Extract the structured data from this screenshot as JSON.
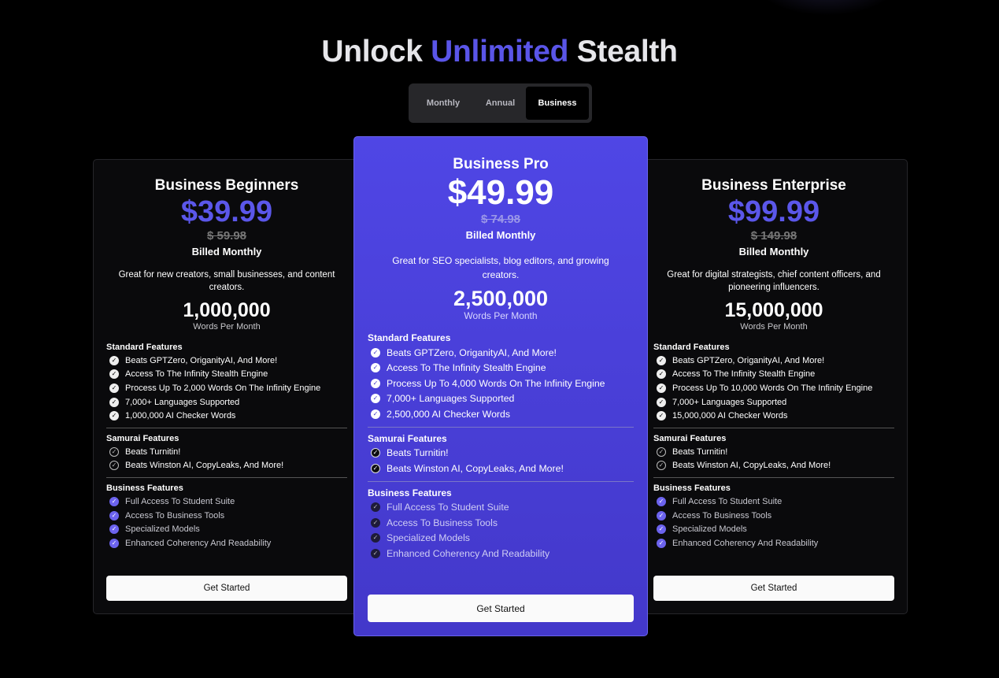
{
  "title": {
    "part1": "Unlock",
    "accent": "Unlimited",
    "part2": "Stealth"
  },
  "billing_toggle": {
    "options": [
      "Monthly",
      "Annual",
      "Business"
    ],
    "selected": "Business"
  },
  "colors": {
    "accent": "#5b57ea",
    "featured_card": "#4f46e5",
    "background": "#000000"
  },
  "plans": [
    {
      "name": "Business Beginners",
      "price": "$39.99",
      "old_price": "$ 59.98",
      "billing": "Billed Monthly",
      "description": "Great for new creators, small businesses, and content creators.",
      "words": "1,000,000",
      "words_label": "Words Per Month",
      "standard": {
        "title": "Standard Features",
        "items": [
          "Beats GPTZero, OriganityAI, And More!",
          "Access To The Infinity Stealth Engine",
          "Process Up To 2,000 Words On The Infinity Engine",
          "7,000+ Languages Supported",
          "1,000,000 AI Checker Words"
        ]
      },
      "samurai": {
        "title": "Samurai Features",
        "items": [
          "Beats Turnitin!",
          "Beats Winston AI, CopyLeaks, And More!"
        ]
      },
      "business": {
        "title": "Business Features",
        "items": [
          "Full Access To Student Suite",
          "Access To Business Tools",
          "Specialized Models",
          "Enhanced Coherency And Readability"
        ]
      },
      "cta": "Get Started"
    },
    {
      "name": "Business Pro",
      "price": "$49.99",
      "old_price": "$ 74.98",
      "billing": "Billed Monthly",
      "description": "Great for SEO specialists, blog editors, and growing creators.",
      "words": "2,500,000",
      "words_label": "Words Per Month",
      "standard": {
        "title": "Standard Features",
        "items": [
          "Beats GPTZero, OriganityAI, And More!",
          "Access To The Infinity Stealth Engine",
          "Process Up To 4,000 Words On The Infinity Engine",
          "7,000+ Languages Supported",
          "2,500,000 AI Checker Words"
        ]
      },
      "samurai": {
        "title": "Samurai Features",
        "items": [
          "Beats Turnitin!",
          "Beats Winston AI, CopyLeaks, And More!"
        ]
      },
      "business": {
        "title": "Business Features",
        "items": [
          "Full Access To Student Suite",
          "Access To Business Tools",
          "Specialized Models",
          "Enhanced Coherency And Readability"
        ]
      },
      "cta": "Get Started"
    },
    {
      "name": "Business Enterprise",
      "price": "$99.99",
      "old_price": "$ 149.98",
      "billing": "Billed Monthly",
      "description": "Great for digital strategists, chief content officers, and pioneering influencers.",
      "words": "15,000,000",
      "words_label": "Words Per Month",
      "standard": {
        "title": "Standard Features",
        "items": [
          "Beats GPTZero, OriganityAI, And More!",
          "Access To The Infinity Stealth Engine",
          "Process Up To 10,000 Words On The Infinity Engine",
          "7,000+ Languages Supported",
          "15,000,000 AI Checker Words"
        ]
      },
      "samurai": {
        "title": "Samurai Features",
        "items": [
          "Beats Turnitin!",
          "Beats Winston AI, CopyLeaks, And More!"
        ]
      },
      "business": {
        "title": "Business Features",
        "items": [
          "Full Access To Student Suite",
          "Access To Business Tools",
          "Specialized Models",
          "Enhanced Coherency And Readability"
        ]
      },
      "cta": "Get Started"
    }
  ]
}
